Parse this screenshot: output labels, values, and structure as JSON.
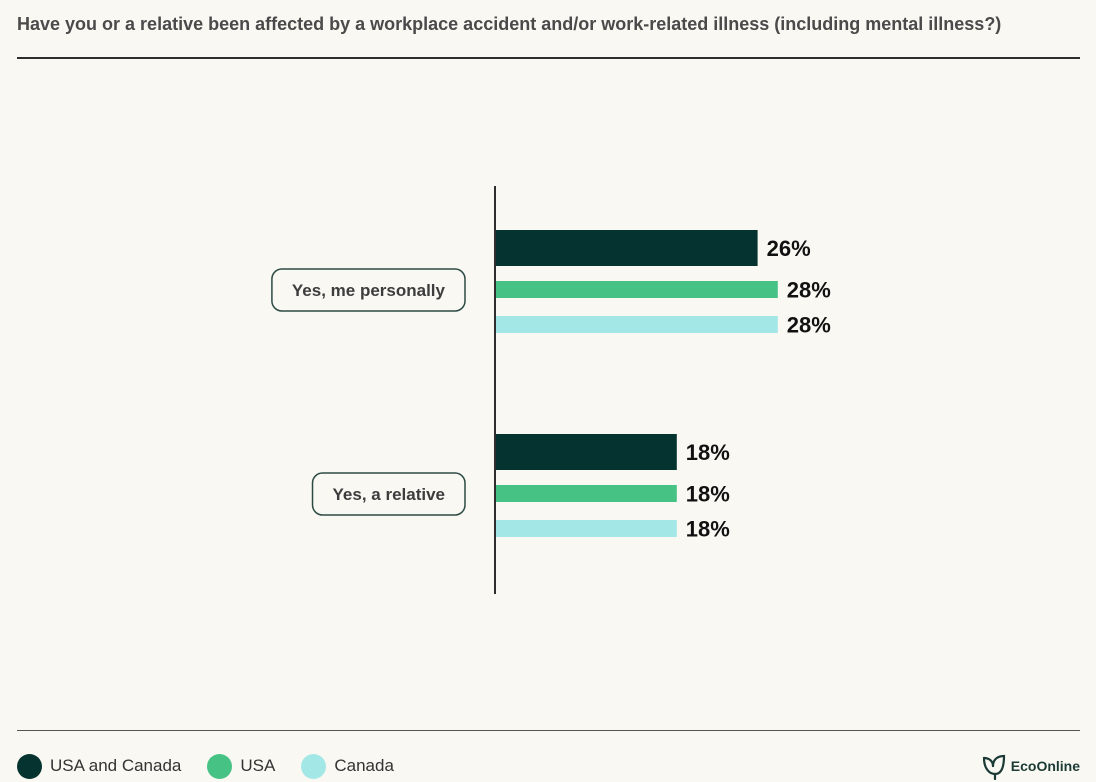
{
  "chart_data": {
    "type": "bar",
    "orientation": "horizontal",
    "title": "Have you or a relative been affected by a workplace accident and/or work-related illness (including mental illness?)",
    "categories": [
      "Yes, me personally",
      "Yes, a relative"
    ],
    "series": [
      {
        "name": "USA and Canada",
        "values": [
          26,
          18
        ],
        "labels": [
          "26%",
          "18%"
        ],
        "color": "#05332f"
      },
      {
        "name": "USA",
        "values": [
          28,
          18
        ],
        "labels": [
          "28%",
          "18%"
        ],
        "color": "#47c285"
      },
      {
        "name": "Canada",
        "values": [
          28,
          18
        ],
        "labels": [
          "28%",
          "18%"
        ],
        "color": "#a3e8e6"
      }
    ],
    "xlim": [
      0,
      100
    ],
    "grid": false,
    "legend_position": "bottom-left"
  },
  "brand": {
    "name": "EcoOnline",
    "color": "#1b3a35",
    "icon": "leaf-logo-icon"
  }
}
